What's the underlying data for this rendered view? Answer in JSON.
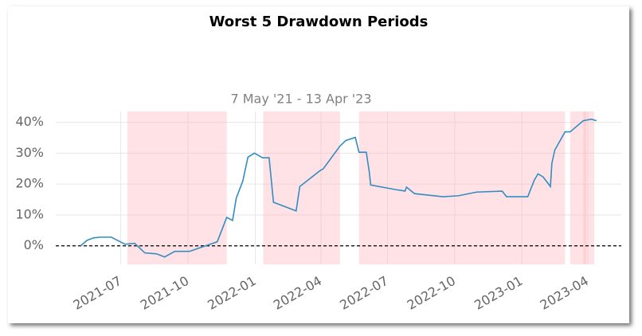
{
  "chart_data": {
    "type": "line",
    "title": "Worst 5 Drawdown Periods",
    "subtitle": "7 May '21 - 13 Apr '23",
    "x": [
      "2021-05-07",
      "2021-05-16",
      "2021-05-25",
      "2021-06-03",
      "2021-06-18",
      "2021-07-07",
      "2021-07-20",
      "2021-08-03",
      "2021-08-19",
      "2021-08-30",
      "2021-09-13",
      "2021-10-03",
      "2021-10-25",
      "2021-11-10",
      "2021-11-23",
      "2021-12-01",
      "2021-12-06",
      "2021-12-15",
      "2021-12-22",
      "2021-12-31",
      "2022-01-11",
      "2022-01-20",
      "2022-01-26",
      "2022-02-26",
      "2022-03-03",
      "2022-03-31",
      "2022-04-04",
      "2022-04-27",
      "2022-05-05",
      "2022-05-18",
      "2022-05-23",
      "2022-06-02",
      "2022-06-06",
      "2022-06-08",
      "2022-07-12",
      "2022-07-21",
      "2022-07-25",
      "2022-07-27",
      "2022-08-07",
      "2022-09-15",
      "2022-10-06",
      "2022-10-31",
      "2022-12-05",
      "2022-12-11",
      "2023-01-09",
      "2023-01-18",
      "2023-01-23",
      "2023-01-30",
      "2023-02-09",
      "2023-02-11",
      "2023-02-15",
      "2023-03-01",
      "2023-03-08",
      "2023-03-26",
      "2023-04-06",
      "2023-04-13"
    ],
    "series": [
      {
        "color": "#348dc1",
        "values": [
          0,
          1.8,
          2.6,
          2.8,
          2.8,
          0.5,
          0.8,
          -2.3,
          -2.6,
          -3.6,
          -1.8,
          -1.8,
          0,
          1.3,
          9.2,
          8.2,
          15.4,
          21,
          28.7,
          30,
          28.5,
          28.5,
          14.1,
          11.3,
          19.2,
          24.4,
          24.9,
          32.3,
          34.1,
          35.1,
          30.3,
          30.3,
          24.1,
          19.7,
          18.2,
          17.9,
          17.7,
          19,
          16.9,
          15.9,
          16.2,
          17.4,
          17.7,
          15.9,
          15.9,
          21.3,
          23.3,
          22.3,
          19.2,
          26.7,
          31,
          36.9,
          36.9,
          40.5,
          41,
          40.5
        ]
      }
    ],
    "periods": [
      {
        "start": "2021-07-10",
        "end": "2021-11-23"
      },
      {
        "start": "2022-01-12",
        "end": "2022-04-27"
      },
      {
        "start": "2022-05-23",
        "end": "2023-03-01"
      },
      {
        "start": "2023-03-08",
        "end": "2023-04-10"
      },
      {
        "start": "2023-03-26",
        "end": "2023-03-30"
      }
    ],
    "period_color": "#ffb6bf",
    "hline": 0,
    "xlim": [
      "2021-04-03",
      "2023-05-17"
    ],
    "xticks": [
      {
        "value": "2021-07-01",
        "label": "2021-07"
      },
      {
        "value": "2021-10-01",
        "label": "2021-10"
      },
      {
        "value": "2022-01-01",
        "label": "2022-01"
      },
      {
        "value": "2022-04-01",
        "label": "2022-04"
      },
      {
        "value": "2022-07-01",
        "label": "2022-07"
      },
      {
        "value": "2022-10-01",
        "label": "2022-10"
      },
      {
        "value": "2023-01-01",
        "label": "2023-01"
      },
      {
        "value": "2023-04-01",
        "label": "2023-04"
      }
    ],
    "ylim": [
      -6,
      43.5
    ],
    "yticks": [
      {
        "value": 0,
        "label": "0%"
      },
      {
        "value": 10,
        "label": "10%"
      },
      {
        "value": 20,
        "label": "20%"
      },
      {
        "value": 30,
        "label": "30%"
      },
      {
        "value": 40,
        "label": "40%"
      }
    ],
    "grid": true
  }
}
